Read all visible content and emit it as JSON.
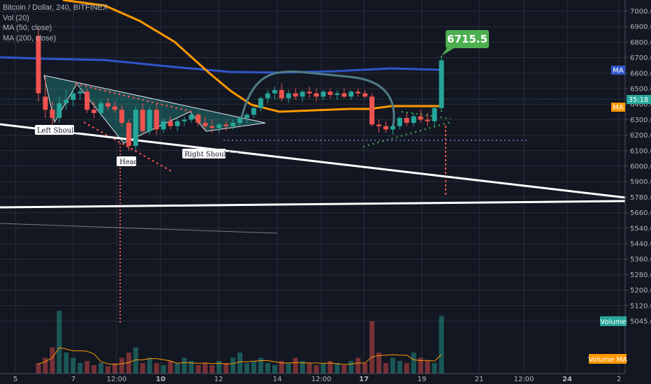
{
  "legend": {
    "symbol": "Bitcoin / Dollar, 240, BITFINEX",
    "vol": "Vol (20)",
    "ma50": "MA (50, close)",
    "ma200": "MA (200, close)"
  },
  "chart_data": {
    "type": "candlestick",
    "symbol": "Bitcoin / Dollar",
    "interval": "240",
    "exchange": "BITFINEX",
    "price_axis": {
      "labels": [
        "7000.0",
        "6900.0",
        "6800.0",
        "6700.0",
        "6600.0",
        "6500.0",
        "6400.0",
        "6300.0",
        "6200.0",
        "6100.0",
        "6000.0",
        "5900.0",
        "5780.0",
        "5660.0",
        "5540.0",
        "5440.0",
        "5360.0",
        "5280.0",
        "5200.0",
        "5120.0",
        "5045.0"
      ]
    },
    "time_axis": {
      "labels": [
        "5",
        "7",
        "12:00",
        "10",
        "12",
        "14",
        "12:00",
        "17",
        "19",
        "21",
        "12:00",
        "24",
        "2"
      ]
    },
    "current_price_label": "35:18",
    "target_label": "6715.5",
    "ma_labels": {
      "ma200": "MA",
      "ma50": "MA",
      "volume": "Volume",
      "volume_ma": "Volume MA"
    },
    "annotations": {
      "left_shoulder": "Left Shoulder",
      "head": "Head",
      "right_shoulder": "Right Shoulder"
    },
    "colors": {
      "bg": "#131722",
      "up": "#26a69a",
      "down": "#ef5350",
      "ma50": "#ff9800",
      "ma200": "#2f56c9",
      "grid": "#2a2e39",
      "target": "#4caf50",
      "white_line": "#ffffff",
      "cup": "#4f7c86"
    },
    "candles": [
      {
        "o": 6850,
        "h": 6900,
        "l": 6450,
        "c": 6500
      },
      {
        "o": 6480,
        "h": 6600,
        "l": 6350,
        "c": 6400
      },
      {
        "o": 6400,
        "h": 6450,
        "l": 6300,
        "c": 6350
      },
      {
        "o": 6350,
        "h": 6480,
        "l": 6320,
        "c": 6440
      },
      {
        "o": 6440,
        "h": 6520,
        "l": 6400,
        "c": 6460
      },
      {
        "o": 6460,
        "h": 6530,
        "l": 6420,
        "c": 6500
      },
      {
        "o": 6500,
        "h": 6540,
        "l": 6460,
        "c": 6510
      },
      {
        "o": 6510,
        "h": 6530,
        "l": 6380,
        "c": 6400
      },
      {
        "o": 6400,
        "h": 6450,
        "l": 6350,
        "c": 6380
      },
      {
        "o": 6380,
        "h": 6460,
        "l": 6360,
        "c": 6440
      },
      {
        "o": 6440,
        "h": 6470,
        "l": 6400,
        "c": 6420
      },
      {
        "o": 6420,
        "h": 6450,
        "l": 6380,
        "c": 6400
      },
      {
        "o": 6400,
        "h": 6430,
        "l": 6300,
        "c": 6320
      },
      {
        "o": 6320,
        "h": 6340,
        "l": 6150,
        "c": 6180
      },
      {
        "o": 6180,
        "h": 6420,
        "l": 6150,
        "c": 6400
      },
      {
        "o": 6400,
        "h": 6440,
        "l": 6250,
        "c": 6270
      },
      {
        "o": 6270,
        "h": 6420,
        "l": 6250,
        "c": 6400
      },
      {
        "o": 6400,
        "h": 6440,
        "l": 6250,
        "c": 6280
      },
      {
        "o": 6280,
        "h": 6350,
        "l": 6260,
        "c": 6330
      },
      {
        "o": 6330,
        "h": 6360,
        "l": 6280,
        "c": 6300
      },
      {
        "o": 6300,
        "h": 6350,
        "l": 6270,
        "c": 6330
      },
      {
        "o": 6330,
        "h": 6360,
        "l": 6300,
        "c": 6340
      },
      {
        "o": 6340,
        "h": 6380,
        "l": 6320,
        "c": 6370
      },
      {
        "o": 6370,
        "h": 6380,
        "l": 6300,
        "c": 6320
      },
      {
        "o": 6320,
        "h": 6360,
        "l": 6280,
        "c": 6300
      },
      {
        "o": 6300,
        "h": 6340,
        "l": 6260,
        "c": 6290
      },
      {
        "o": 6290,
        "h": 6320,
        "l": 6260,
        "c": 6310
      },
      {
        "o": 6310,
        "h": 6330,
        "l": 6270,
        "c": 6300
      },
      {
        "o": 6300,
        "h": 6340,
        "l": 6280,
        "c": 6320
      },
      {
        "o": 6320,
        "h": 6360,
        "l": 6300,
        "c": 6350
      },
      {
        "o": 6350,
        "h": 6380,
        "l": 6320,
        "c": 6370
      },
      {
        "o": 6370,
        "h": 6420,
        "l": 6350,
        "c": 6410
      },
      {
        "o": 6410,
        "h": 6480,
        "l": 6390,
        "c": 6470
      },
      {
        "o": 6470,
        "h": 6520,
        "l": 6440,
        "c": 6500
      },
      {
        "o": 6500,
        "h": 6540,
        "l": 6460,
        "c": 6520
      },
      {
        "o": 6520,
        "h": 6560,
        "l": 6450,
        "c": 6470
      },
      {
        "o": 6470,
        "h": 6520,
        "l": 6440,
        "c": 6500
      },
      {
        "o": 6500,
        "h": 6530,
        "l": 6460,
        "c": 6480
      },
      {
        "o": 6480,
        "h": 6520,
        "l": 6450,
        "c": 6510
      },
      {
        "o": 6510,
        "h": 6540,
        "l": 6470,
        "c": 6500
      },
      {
        "o": 6500,
        "h": 6530,
        "l": 6450,
        "c": 6480
      },
      {
        "o": 6480,
        "h": 6520,
        "l": 6460,
        "c": 6510
      },
      {
        "o": 6510,
        "h": 6530,
        "l": 6470,
        "c": 6490
      },
      {
        "o": 6490,
        "h": 6520,
        "l": 6460,
        "c": 6500
      },
      {
        "o": 6500,
        "h": 6530,
        "l": 6470,
        "c": 6480
      },
      {
        "o": 6480,
        "h": 6520,
        "l": 6460,
        "c": 6510
      },
      {
        "o": 6510,
        "h": 6530,
        "l": 6480,
        "c": 6500
      },
      {
        "o": 6500,
        "h": 6520,
        "l": 6470,
        "c": 6480
      },
      {
        "o": 6480,
        "h": 6500,
        "l": 6300,
        "c": 6310
      },
      {
        "o": 6310,
        "h": 6340,
        "l": 6260,
        "c": 6300
      },
      {
        "o": 6300,
        "h": 6330,
        "l": 6260,
        "c": 6280
      },
      {
        "o": 6280,
        "h": 6320,
        "l": 6250,
        "c": 6300
      },
      {
        "o": 6300,
        "h": 6360,
        "l": 6280,
        "c": 6350
      },
      {
        "o": 6350,
        "h": 6380,
        "l": 6300,
        "c": 6320
      },
      {
        "o": 6320,
        "h": 6380,
        "l": 6300,
        "c": 6360
      },
      {
        "o": 6360,
        "h": 6400,
        "l": 6320,
        "c": 6340
      },
      {
        "o": 6340,
        "h": 6380,
        "l": 6300,
        "c": 6330
      },
      {
        "o": 6330,
        "h": 6420,
        "l": 6300,
        "c": 6410
      },
      {
        "o": 6410,
        "h": 6715,
        "l": 6400,
        "c": 6700
      }
    ],
    "volume_profile": [
      0.1,
      0.15,
      0.25,
      0.6,
      0.2,
      0.15,
      0.1,
      0.12,
      0.08,
      0.1,
      0.07,
      0.1,
      0.15,
      0.2,
      0.25,
      0.1,
      0.15,
      0.1,
      0.08,
      0.12,
      0.1,
      0.15,
      0.12,
      0.08,
      0.1,
      0.08,
      0.12,
      0.1,
      0.15,
      0.2,
      0.1,
      0.12,
      0.15,
      0.1,
      0.08,
      0.12,
      0.1,
      0.15,
      0.12,
      0.1,
      0.08,
      0.1,
      0.12,
      0.1,
      0.08,
      0.12,
      0.15,
      0.1,
      0.5,
      0.2,
      0.1,
      0.15,
      0.12,
      0.1,
      0.2,
      0.15,
      0.12,
      0.1,
      0.55
    ]
  }
}
